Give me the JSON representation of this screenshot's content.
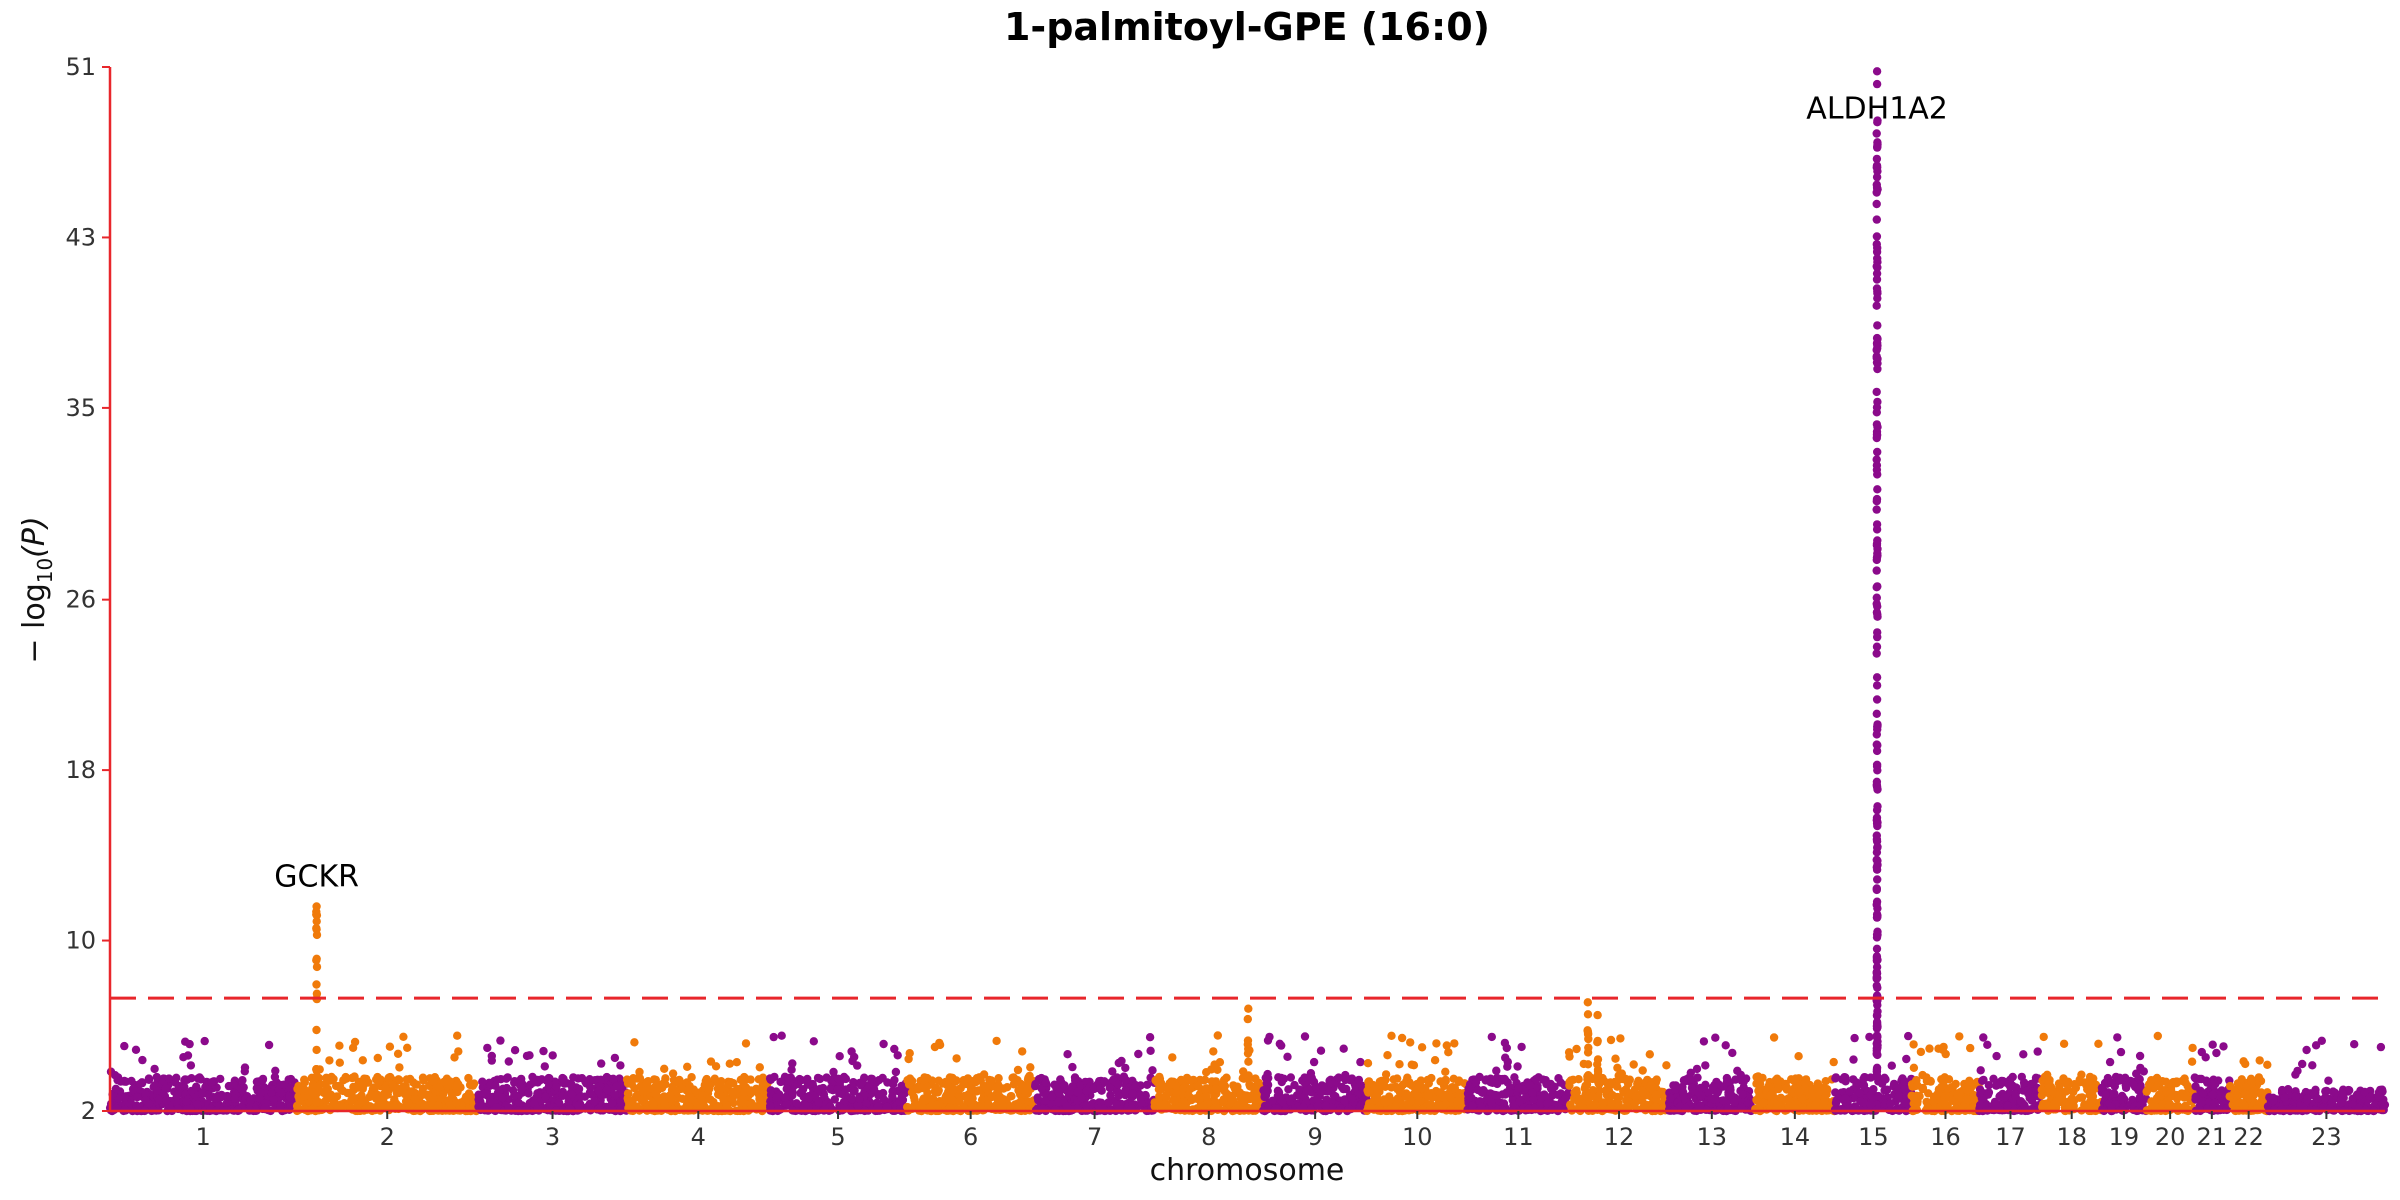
{
  "chart_data": {
    "type": "scatter",
    "title": "1-palmitoyl-GPE (16:0)",
    "xlabel": "chromosome",
    "ylabel_prefix": "− log",
    "ylabel_sub": "10",
    "ylabel_suffix": "(P)",
    "ylim": [
      2,
      51
    ],
    "yticks": [
      2,
      10,
      18,
      26,
      35,
      43,
      51
    ],
    "threshold": 7.3,
    "colors": {
      "odd": "#8B0A8B",
      "even": "#F07A0A",
      "axis": "#E8262B",
      "threshold": "#E8262B"
    },
    "chromosomes": [
      {
        "label": "1",
        "start": 0,
        "end": 248
      },
      {
        "label": "2",
        "start": 248,
        "end": 490
      },
      {
        "label": "3",
        "start": 490,
        "end": 688
      },
      {
        "label": "4",
        "start": 688,
        "end": 878
      },
      {
        "label": "5",
        "start": 878,
        "end": 1060
      },
      {
        "label": "6",
        "start": 1060,
        "end": 1231
      },
      {
        "label": "7",
        "start": 1231,
        "end": 1390
      },
      {
        "label": "8",
        "start": 1390,
        "end": 1535
      },
      {
        "label": "9",
        "start": 1535,
        "end": 1673
      },
      {
        "label": "10",
        "start": 1673,
        "end": 1807
      },
      {
        "label": "11",
        "start": 1807,
        "end": 1942
      },
      {
        "label": "12",
        "start": 1942,
        "end": 2075
      },
      {
        "label": "13",
        "start": 2075,
        "end": 2189
      },
      {
        "label": "14",
        "start": 2189,
        "end": 2296
      },
      {
        "label": "15",
        "start": 2296,
        "end": 2398
      },
      {
        "label": "16",
        "start": 2398,
        "end": 2488
      },
      {
        "label": "17",
        "start": 2488,
        "end": 2571
      },
      {
        "label": "18",
        "start": 2571,
        "end": 2651
      },
      {
        "label": "19",
        "start": 2651,
        "end": 2710
      },
      {
        "label": "20",
        "start": 2710,
        "end": 2774
      },
      {
        "label": "21",
        "start": 2774,
        "end": 2821
      },
      {
        "label": "22",
        "start": 2821,
        "end": 2872
      },
      {
        "label": "23",
        "start": 2872,
        "end": 3028
      }
    ],
    "x_domain": [
      0,
      3028
    ],
    "peaks": [
      {
        "chrom": "2",
        "pos": 275,
        "top": 11.6,
        "count": 22,
        "label": "GCKR"
      },
      {
        "chrom": "8",
        "pos": 1515,
        "top": 6.8,
        "count": 10
      },
      {
        "chrom": "12",
        "pos": 1967,
        "top": 7.1,
        "count": 14
      },
      {
        "chrom": "12",
        "pos": 1980,
        "top": 6.5,
        "count": 8
      },
      {
        "chrom": "15",
        "pos": 2352,
        "top": 50.8,
        "count": 200,
        "label": "ALDH1A2"
      }
    ]
  }
}
